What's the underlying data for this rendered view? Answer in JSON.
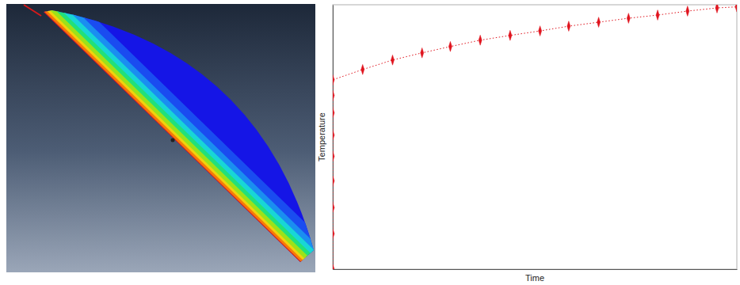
{
  "chart_data": {
    "type": "line",
    "xlabel": "Time",
    "ylabel": "Temperature",
    "x": [
      0,
      0,
      0,
      0,
      0,
      0,
      0,
      0,
      0,
      7.4,
      14.8,
      22.1,
      29.1,
      36.5,
      43.9,
      51.3,
      58.4,
      65.8,
      73.2,
      80.4,
      87.8,
      95.1,
      100
    ],
    "values": [
      0,
      13.4,
      23.3,
      33.4,
      42.7,
      50.7,
      59.1,
      65.7,
      71.6,
      75.5,
      79.1,
      81.8,
      84.2,
      86.6,
      88.4,
      90.1,
      91.9,
      93.4,
      94.9,
      96.1,
      97.6,
      98.8,
      99.2
    ],
    "xlim": [
      0,
      100
    ],
    "ylim": [
      0,
      100
    ],
    "tick_labels": false,
    "color": "#e0141e",
    "marker": "diamond",
    "line_style": "dotted"
  }
}
